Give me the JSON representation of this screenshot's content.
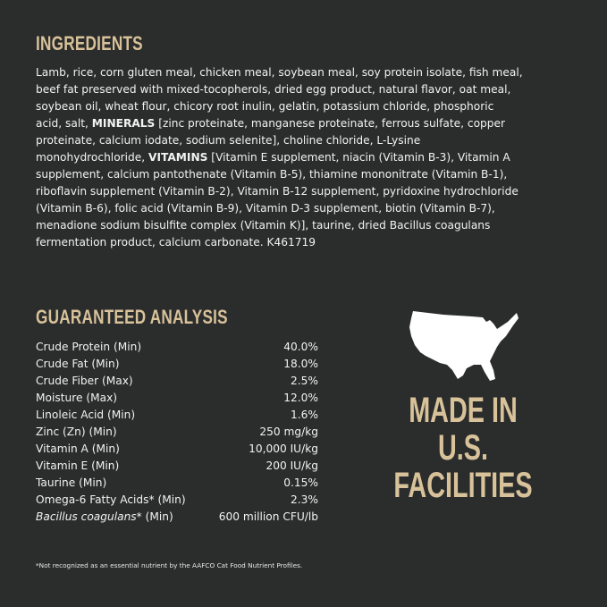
{
  "ingredients": {
    "title": "INGREDIENTS",
    "lines": [
      [
        "Lamb, rice, corn gluten meal, chicken meal, soybean meal, soy protein isolate, fish meal,"
      ],
      [
        "beef fat preserved with mixed-tocopherols, dried egg product, natural flavor, oat meal,"
      ],
      [
        "soybean oil, wheat flour, chicory root inulin, gelatin, potassium chloride, phosphoric"
      ],
      [
        "acid, salt, ",
        "MINERALS",
        " [zinc proteinate, manganese proteinate, ferrous sulfate, copper"
      ],
      [
        "proteinate, calcium iodate, sodium selenite], choline chloride, L-Lysine"
      ],
      [
        "monohydrochloride, ",
        "VITAMINS",
        " [Vitamin E supplement, niacin (Vitamin B-3), Vitamin A"
      ],
      [
        "supplement, calcium pantothenate (Vitamin B-5), thiamine mononitrate (Vitamin B-1),"
      ],
      [
        "riboflavin supplement (Vitamin B-2), Vitamin B-12 supplement, pyridoxine hydrochloride"
      ],
      [
        "(Vitamin B-6), folic acid (Vitamin B-9), Vitamin D-3 supplement, biotin (Vitamin B-7),"
      ],
      [
        "menadione sodium bisulfite complex (Vitamin K)], taurine, dried Bacillus coagulans"
      ],
      [
        "fermentation product, calcium carbonate. K461719"
      ]
    ]
  },
  "analysis": {
    "title": "GUARANTEED ANALYSIS",
    "rows": [
      {
        "name": "Crude Protein (Min)",
        "value": "40.0%"
      },
      {
        "name": "Crude Fat (Min)",
        "value": "18.0%"
      },
      {
        "name": "Crude Fiber (Max)",
        "value": "2.5%"
      },
      {
        "name": "Moisture (Max)",
        "value": "12.0%"
      },
      {
        "name": "Linoleic Acid (Min)",
        "value": "1.6%"
      },
      {
        "name": "Zinc (Zn) (Min)",
        "value": "250 mg/kg"
      },
      {
        "name": "Vitamin A (Min)",
        "value": "10,000 IU/kg"
      },
      {
        "name": "Vitamin E (Min)",
        "value": "200 IU/kg"
      },
      {
        "name": "Taurine (Min)",
        "value": "0.15%"
      },
      {
        "name": "Omega-6 Fatty Acids* (Min)",
        "value": "2.3%"
      },
      {
        "name_italic": "Bacillus coagulans",
        "name": "* (Min)",
        "value": "600 million CFU/lb"
      }
    ],
    "footnote": "*Not recognized as an essential nutrient by the AAFCO Cat Food Nutrient Profiles."
  },
  "badge": {
    "icon": "usa-map-icon",
    "lines": [
      "MADE IN",
      "U.S.",
      "FACILITIES"
    ],
    "color": "#d8c29a"
  }
}
